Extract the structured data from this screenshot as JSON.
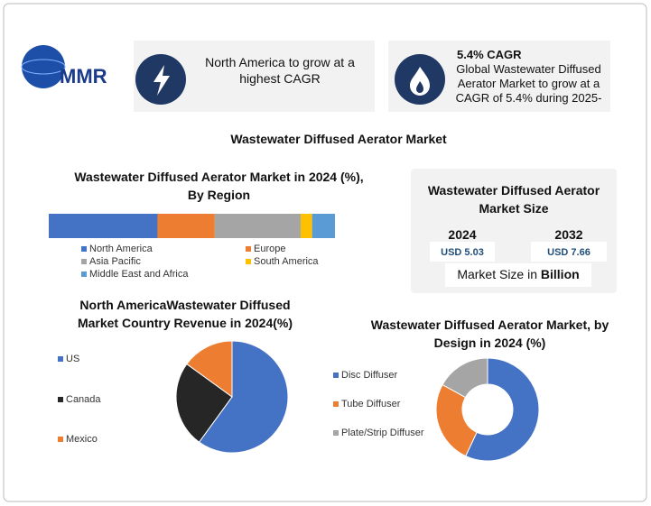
{
  "logo": {
    "text": "MMR"
  },
  "header": {
    "cards": [
      {
        "text": "North America to grow at a highest CAGR"
      },
      {
        "title": "5.4% CAGR",
        "text": "Global Wastewater Diffused Aerator Market to grow at a CAGR of 5.4% during 2025-"
      }
    ]
  },
  "title": "Wastewater Diffused Aerator Market",
  "market_size": {
    "title": "Wastewater Diffused Aerator Market Size",
    "years": [
      {
        "year": "2024",
        "value": "USD 5.03"
      },
      {
        "year": "2032",
        "value": "USD 7.66"
      }
    ],
    "unit_prefix": "Market Size in",
    "unit": "Billion"
  },
  "chart_data": [
    {
      "type": "stacked-bar",
      "title": "Wastewater Diffused Aerator  Market in 2024 (%), By Region",
      "series": [
        {
          "name": "North America",
          "color": "#4472c4",
          "values": [
            38
          ]
        },
        {
          "name": "Europe",
          "color": "#ed7d31",
          "values": [
            20
          ]
        },
        {
          "name": "Asia Pacific",
          "color": "#a5a5a5",
          "values": [
            30
          ]
        },
        {
          "name": "South America",
          "color": "#ffc000",
          "values": [
            4
          ]
        },
        {
          "name": "Middle East and Africa",
          "color": "#5b9bd5",
          "values": [
            8
          ]
        }
      ]
    },
    {
      "type": "pie",
      "title": "North AmericaWastewater Diffused Market Country Revenue in 2024(%)",
      "categories": [
        "US",
        "Canada",
        "Mexico"
      ],
      "values": [
        60,
        25,
        15
      ],
      "colors": [
        "#4472c4",
        "#262626",
        "#ed7d31"
      ]
    },
    {
      "type": "donut",
      "title": "Wastewater Diffused Aerator Market, by Design in 2024 (%)",
      "categories": [
        "Disc Diffuser",
        "Tube Diffuser",
        "Plate/Strip Diffuser"
      ],
      "values": [
        57,
        26,
        17
      ],
      "colors": [
        "#4472c4",
        "#ed7d31",
        "#a5a5a5"
      ]
    }
  ]
}
